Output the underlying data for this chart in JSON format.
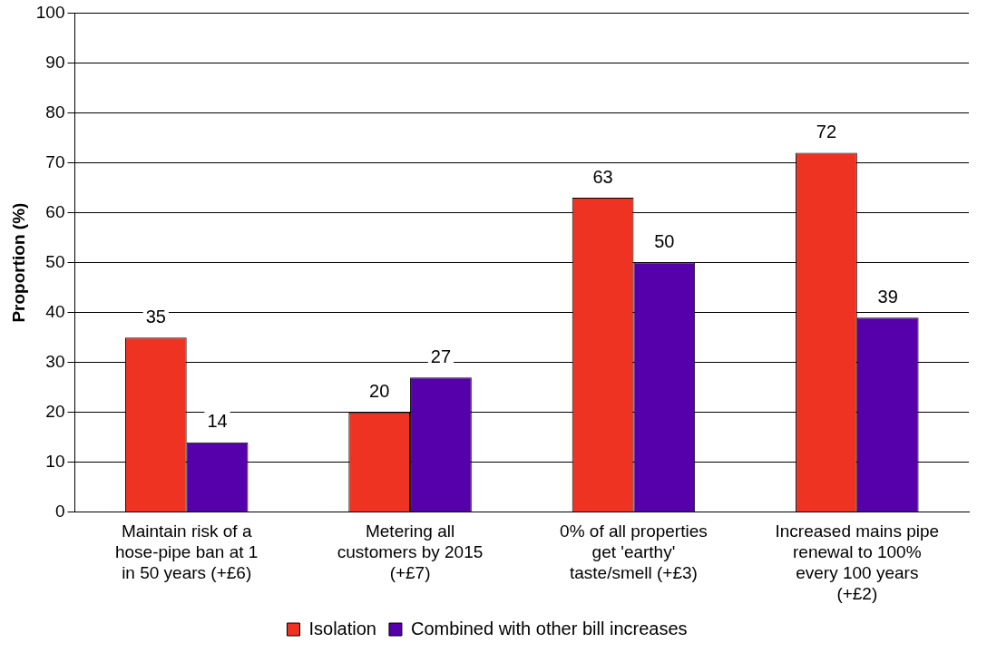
{
  "chart_data": {
    "type": "bar",
    "ylabel": "Proportion (%)",
    "categories": [
      "Maintain risk of a hose-pipe ban at 1 in 50 years (+£6)",
      "Metering all customers by 2015 (+£7)",
      "0% of all properties get 'earthy' taste/smell (+£3)",
      "Increased mains pipe renewal to 100% every 100 years (+£2)"
    ],
    "series": [
      {
        "name": "Isolation",
        "color": "#ee3322",
        "values": [
          35,
          20,
          63,
          72
        ]
      },
      {
        "name": "Combined with other bill increases",
        "color": "#5500aa",
        "values": [
          14,
          27,
          50,
          39
        ]
      }
    ],
    "ylim": [
      0,
      100
    ],
    "yticks": [
      0,
      10,
      20,
      30,
      40,
      50,
      60,
      70,
      80,
      90,
      100
    ],
    "grid": "y",
    "legend": "bottom",
    "data_labels": true
  }
}
